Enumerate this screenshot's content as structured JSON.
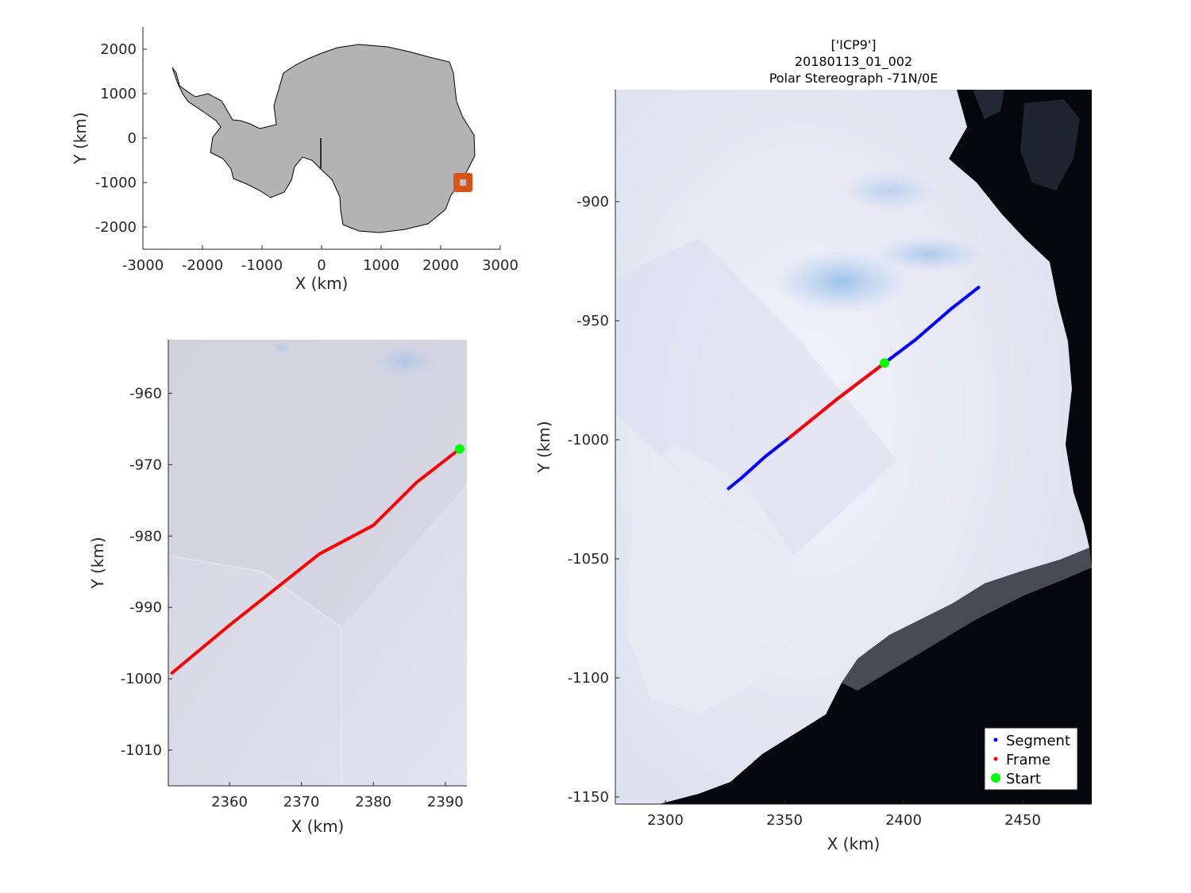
{
  "overview": {
    "xlabel": "X (km)",
    "ylabel": "Y (km)",
    "xticks": [
      "-3000",
      "-2000",
      "-1000",
      "0",
      "1000",
      "2000",
      "3000"
    ],
    "yticks": [
      "2000",
      "1000",
      "0",
      "-1000",
      "-2000"
    ],
    "xlim": [
      -3000,
      3000
    ],
    "ylim": [
      -2500,
      2500
    ],
    "continent_color": "#b3b3b3",
    "marker_color": "#d95319",
    "marker_center_km": [
      2375,
      -1000
    ]
  },
  "zoom": {
    "xlabel": "X (km)",
    "ylabel": "Y (km)",
    "xticks": [
      "2360",
      "2370",
      "2380",
      "2390"
    ],
    "yticks": [
      "-960",
      "-970",
      "-980",
      "-990",
      "-1000",
      "-1010"
    ],
    "xlim": [
      2351.5,
      2393
    ],
    "ylim": [
      -1015,
      -952.5
    ],
    "frame_color": "#ff0000",
    "start_color": "#00ff00",
    "frame_points": [
      [
        2352,
        -999.2
      ],
      [
        2360,
        -992.5
      ],
      [
        2372.5,
        -982.5
      ],
      [
        2380,
        -978.5
      ],
      [
        2386,
        -972.5
      ],
      [
        2392,
        -967.8
      ]
    ],
    "start_point": [
      2392,
      -967.8
    ]
  },
  "main": {
    "title_lines": [
      "['ICP9']",
      "20180113_01_002",
      "Polar Stereograph -71N/0E"
    ],
    "xlabel": "X (km)",
    "ylabel": "Y (km)",
    "xticks": [
      "2300",
      "2350",
      "2400",
      "2450"
    ],
    "yticks": [
      "-900",
      "-950",
      "-1000",
      "-1050",
      "-1100",
      "-1150"
    ],
    "xlim": [
      2279,
      2479
    ],
    "ylim": [
      -1153,
      -853
    ],
    "segment_color": "#0000ff",
    "frame_color": "#ff0000",
    "start_color": "#00ff00",
    "segment_points": [
      [
        2326.5,
        -1020.5
      ],
      [
        2332,
        -1016
      ],
      [
        2342,
        -1007
      ],
      [
        2352,
        -999.2
      ],
      [
        2372,
        -983
      ],
      [
        2392,
        -967.8
      ],
      [
        2405,
        -958
      ],
      [
        2420,
        -945
      ],
      [
        2431.5,
        -936
      ]
    ],
    "frame_points": [
      [
        2352,
        -999.2
      ],
      [
        2372,
        -983
      ],
      [
        2392,
        -967.8
      ]
    ],
    "start_point": [
      2392,
      -967.8
    ],
    "legend": {
      "segment": "Segment",
      "frame": "Frame",
      "start": "Start",
      "placement": "bottom-right"
    }
  }
}
